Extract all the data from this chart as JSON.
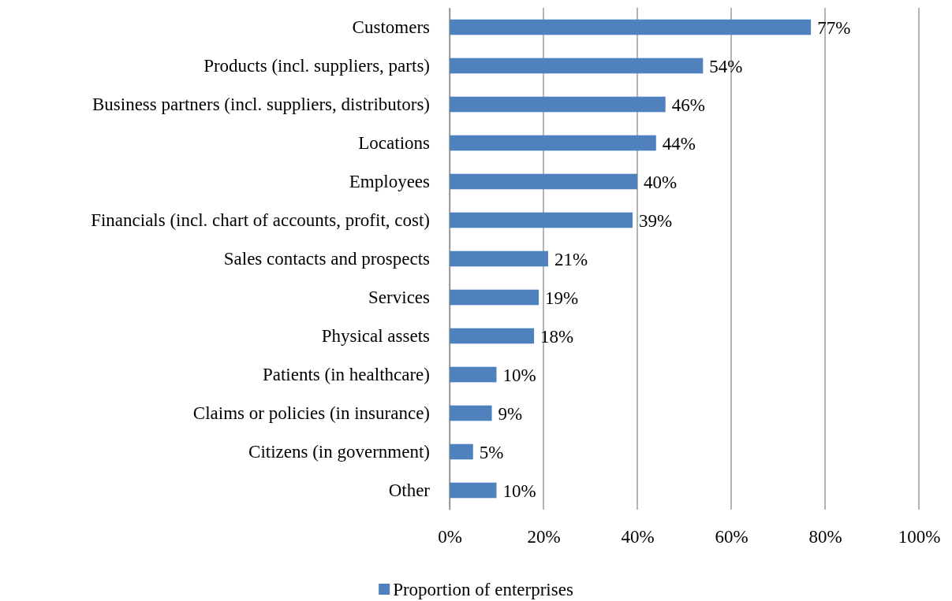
{
  "chart_data": {
    "type": "bar",
    "orientation": "horizontal",
    "categories": [
      "Customers",
      "Products (incl. suppliers, parts)",
      "Business partners (incl. suppliers, distributors)",
      "Locations",
      "Employees",
      "Financials (incl. chart of accounts, profit, cost)",
      "Sales contacts and prospects",
      "Services",
      "Physical assets",
      "Patients (in healthcare)",
      "Claims or policies (in insurance)",
      "Citizens (in government)",
      "Other"
    ],
    "series": [
      {
        "name": "Proportion of enterprises",
        "color": "#4f81bd",
        "values": [
          77,
          54,
          46,
          44,
          40,
          39,
          21,
          19,
          18,
          10,
          9,
          5,
          10
        ],
        "value_labels": [
          "77%",
          "54%",
          "46%",
          "44%",
          "40%",
          "39%",
          "21%",
          "19%",
          "18%",
          "10%",
          "9%",
          "5%",
          "10%"
        ]
      }
    ],
    "xlim": [
      0,
      100
    ],
    "xticks": [
      {
        "value": 0,
        "label": "0%"
      },
      {
        "value": 20,
        "label": "20%"
      },
      {
        "value": 40,
        "label": "40%"
      },
      {
        "value": 60,
        "label": "60%"
      },
      {
        "value": 80,
        "label": "80%"
      },
      {
        "value": 100,
        "label": "100%"
      }
    ],
    "grid": "x",
    "legend": "bottom"
  }
}
